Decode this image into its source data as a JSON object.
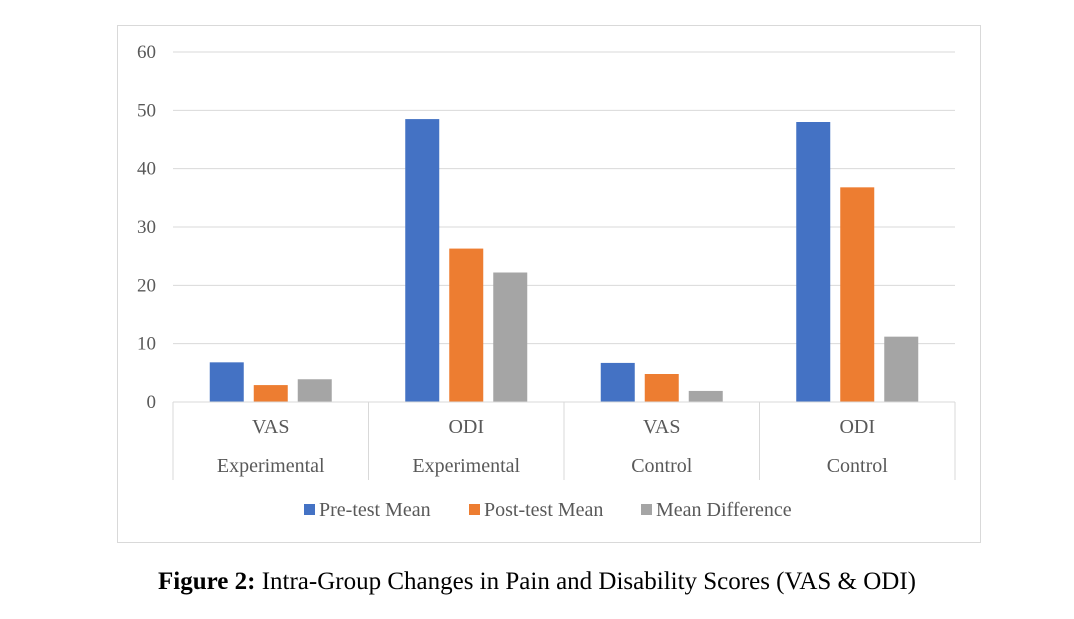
{
  "caption": {
    "label": "Figure 2:",
    "text": " Intra-Group Changes in Pain and Disability Scores (VAS & ODI)"
  },
  "chart_data": {
    "type": "bar",
    "title": "",
    "xlabel": "",
    "ylabel": "",
    "ylim": [
      0,
      60
    ],
    "yticks": [
      0,
      10,
      20,
      30,
      40,
      50,
      60
    ],
    "grid": true,
    "legend_position": "bottom",
    "categories": [
      {
        "measure": "VAS",
        "group": "Experimental"
      },
      {
        "measure": "ODI",
        "group": "Experimental"
      },
      {
        "measure": "VAS",
        "group": "Control"
      },
      {
        "measure": "ODI",
        "group": "Control"
      }
    ],
    "series": [
      {
        "name": "Pre-test Mean",
        "color": "#4472c4",
        "values": [
          6.8,
          48.5,
          6.7,
          48.0
        ]
      },
      {
        "name": "Post-test Mean",
        "color": "#ed7d31",
        "values": [
          2.9,
          26.3,
          4.8,
          36.8
        ]
      },
      {
        "name": "Mean Difference",
        "color": "#a5a5a5",
        "values": [
          3.9,
          22.2,
          1.9,
          11.2
        ]
      }
    ]
  }
}
